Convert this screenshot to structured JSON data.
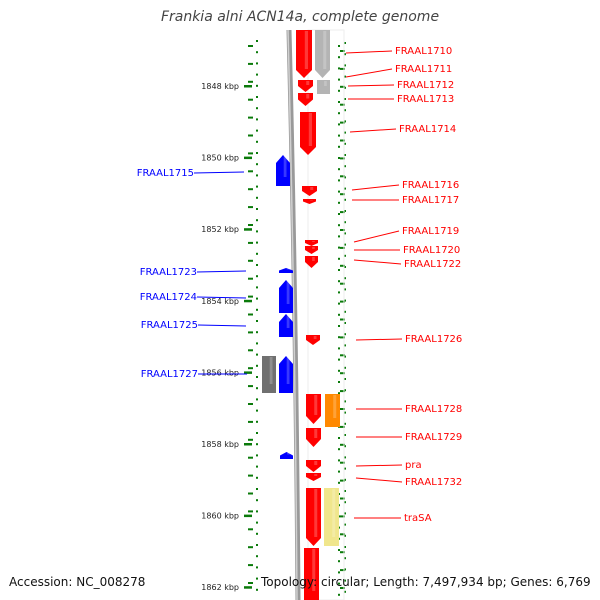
{
  "title": "Frankia alni ACN14a, complete genome",
  "footer": {
    "accession": "Accession: NC_008278",
    "topology": "Topology: circular; Length: 7,497,934 bp; Genes: 6,769"
  },
  "colors": {
    "forward": "#ff0000",
    "reverse": "#0000ff",
    "gray": "#b4b4b4",
    "darkgray": "#707070",
    "orange": "#ff8800",
    "khaki": "#f0e68c",
    "tick": "#0a7a0a",
    "backbone": "#888888"
  },
  "kbp_labels": [
    {
      "text": "1848 kbp",
      "kbp": 1848
    },
    {
      "text": "1850 kbp",
      "kbp": 1850
    },
    {
      "text": "1852 kbp",
      "kbp": 1852
    },
    {
      "text": "1854 kbp",
      "kbp": 1854
    },
    {
      "text": "1856 kbp",
      "kbp": 1856
    },
    {
      "text": "1858 kbp",
      "kbp": 1858
    },
    {
      "text": "1860 kbp",
      "kbp": 1860
    },
    {
      "text": "1862 kbp",
      "kbp": 1862
    }
  ],
  "genes": [
    {
      "name": "FRAAL1710",
      "strand": "+",
      "color": "red"
    },
    {
      "name": "FRAAL1711",
      "strand": "+",
      "color": "gray"
    },
    {
      "name": "FRAAL1712",
      "strand": "+",
      "color": "red"
    },
    {
      "name": "FRAAL1713",
      "strand": "+",
      "color": "red"
    },
    {
      "name": "FRAAL1714",
      "strand": "+",
      "color": "red"
    },
    {
      "name": "FRAAL1715",
      "strand": "-",
      "color": "blue"
    },
    {
      "name": "FRAAL1716",
      "strand": "+",
      "color": "red"
    },
    {
      "name": "FRAAL1717",
      "strand": "+",
      "color": "red"
    },
    {
      "name": "FRAAL1719",
      "strand": "+",
      "color": "red"
    },
    {
      "name": "FRAAL1720",
      "strand": "+",
      "color": "red"
    },
    {
      "name": "FRAAL1722",
      "strand": "+",
      "color": "red"
    },
    {
      "name": "FRAAL1723",
      "strand": "-",
      "color": "blue"
    },
    {
      "name": "FRAAL1724",
      "strand": "-",
      "color": "blue"
    },
    {
      "name": "FRAAL1725",
      "strand": "-",
      "color": "blue"
    },
    {
      "name": "FRAAL1726",
      "strand": "+",
      "color": "red"
    },
    {
      "name": "FRAAL1727",
      "strand": "-",
      "color": "blue"
    },
    {
      "name": "FRAAL1728",
      "strand": "+",
      "color": "red"
    },
    {
      "name": "FRAAL1729",
      "strand": "+",
      "color": "red"
    },
    {
      "name": "pra",
      "strand": "+",
      "color": "red"
    },
    {
      "name": "FRAAL1732",
      "strand": "+",
      "color": "red"
    },
    {
      "name": "traSA",
      "strand": "+",
      "color": "red"
    }
  ]
}
